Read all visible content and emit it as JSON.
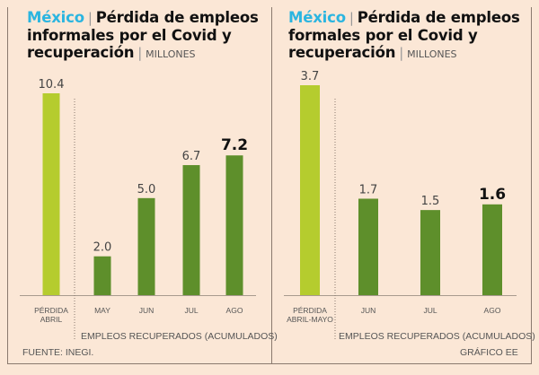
{
  "chart_data": [
    {
      "type": "bar",
      "title_country": "México",
      "title": "Pérdida de empleos informales por el Covid y recuperación",
      "title_lines": [
        "Pérdida de empleos",
        "informales por el Covid y",
        "recuperación"
      ],
      "unit": "MILLONES",
      "categories": [
        "PÉRDIDA ABRIL",
        "MAY",
        "JUN",
        "JUL",
        "AGO"
      ],
      "category_lines": [
        [
          "PÉRDIDA",
          "ABRIL"
        ],
        [
          "MAY"
        ],
        [
          "JUN"
        ],
        [
          "JUL"
        ],
        [
          "AGO"
        ]
      ],
      "values": [
        10.4,
        2.0,
        5.0,
        6.7,
        7.2
      ],
      "value_labels": [
        "10.4",
        "2.0",
        "5.0",
        "6.7",
        "7.2"
      ],
      "highlight_index": 4,
      "group_label": "EMPLEOS RECUPERADOS (ACUMULADOS)",
      "ylim": [
        0,
        11
      ],
      "colors": {
        "loss": "#b5cc2e",
        "recovered": "#5e8f2b"
      }
    },
    {
      "type": "bar",
      "title_country": "México",
      "title": "Pérdida de empleos formales por el Covid y recuperación",
      "title_lines": [
        "Pérdida de empleos",
        "formales por el Covid y",
        "recuperación"
      ],
      "unit": "MILLONES",
      "categories": [
        "PÉRDIDA ABRIL-MAYO",
        "JUN",
        "JUL",
        "AGO"
      ],
      "category_lines": [
        [
          "PÉRDIDA",
          "ABRIL-MAYO"
        ],
        [
          "JUN"
        ],
        [
          "JUL"
        ],
        [
          "AGO"
        ]
      ],
      "values": [
        3.7,
        1.7,
        1.5,
        1.6
      ],
      "value_labels": [
        "3.7",
        "1.7",
        "1.5",
        "1.6"
      ],
      "highlight_index": 3,
      "group_label": "EMPLEOS RECUPERADOS (ACUMULADOS)",
      "ylim": [
        0,
        3.95
      ],
      "colors": {
        "loss": "#b5cc2e",
        "recovered": "#5e8f2b"
      }
    }
  ],
  "footer": {
    "source": "FUENTE: INEGI.",
    "credit": "GRÁFICO EE"
  },
  "colors": {
    "background": "#fbe7d6",
    "country": "#2bb5e0"
  }
}
